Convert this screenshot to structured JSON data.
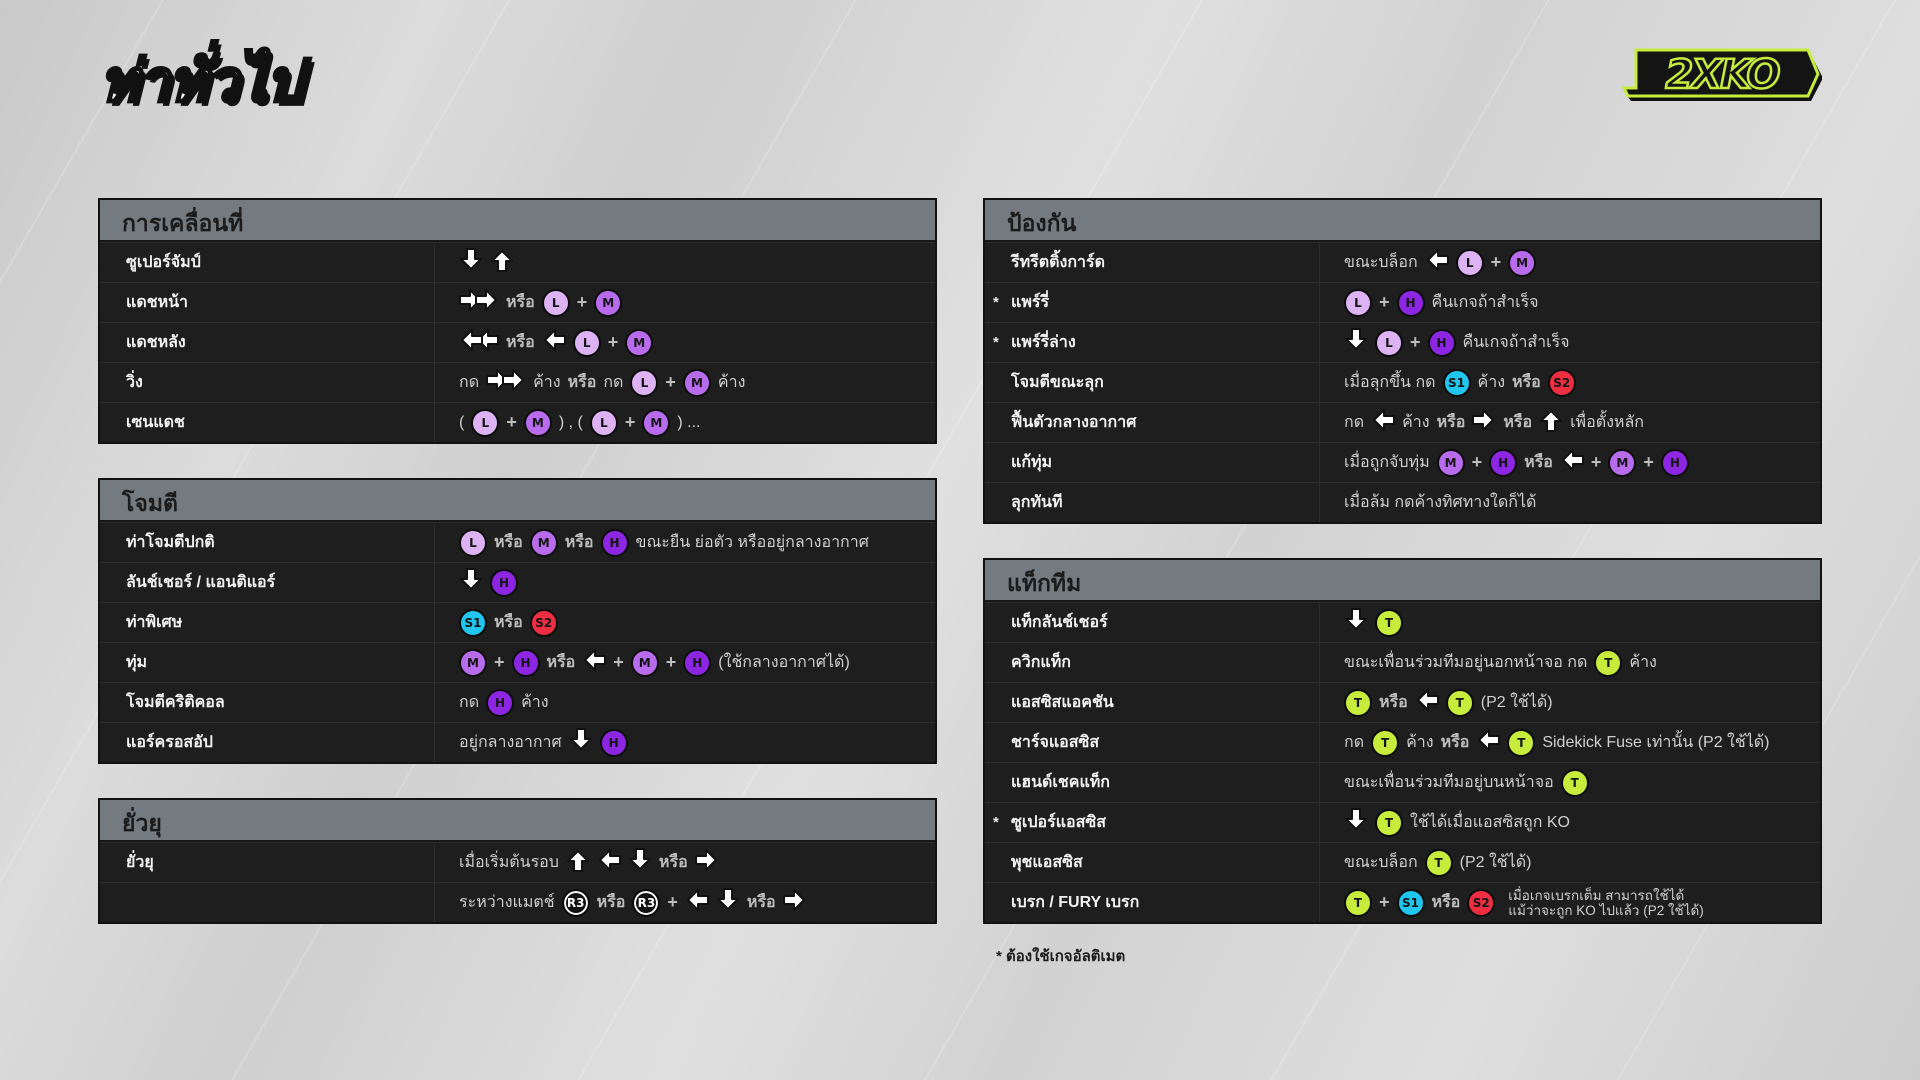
{
  "title": "ท่าทั่วไป",
  "logo_text": "2XKO",
  "colors": {
    "L": "#ddb3f6",
    "M": "#b96bee",
    "H": "#8c26e2",
    "S1": "#20c6ef",
    "S2": "#ef2e42",
    "T": "#c6ec3c",
    "R3": "#111111",
    "header": "#737b80",
    "row": "#1e1e1e"
  },
  "footnote": "* ต้องใช้เกจอัลติเมต",
  "panels": [
    {
      "title": "การเคลื่อนที่",
      "rows": [
        {
          "label": "ซูเปอร์จัมป์",
          "tokens": [
            "arr:down",
            "arr:up"
          ]
        },
        {
          "label": "แดชหน้า",
          "tokens": [
            "arr:right2",
            "or:หรือ",
            "btn:L",
            "+",
            "btn:M"
          ]
        },
        {
          "label": "แดชหลัง",
          "tokens": [
            "arr:left2",
            "or:หรือ",
            "arr:left",
            "btn:L",
            "+",
            "btn:M"
          ]
        },
        {
          "label": "วิ่ง",
          "tokens": [
            "กด",
            "arr:right2",
            "ค้าง",
            "or:หรือ",
            "กด",
            "btn:L",
            "+",
            "btn:M",
            "ค้าง"
          ]
        },
        {
          "label": "เซนแดช",
          "tokens": [
            "(",
            "btn:L",
            "+",
            "btn:M",
            ") , (",
            "btn:L",
            "+",
            "btn:M",
            ")  ..."
          ]
        }
      ]
    },
    {
      "title": "โจมตี",
      "rows": [
        {
          "label": "ท่าโจมตีปกติ",
          "tokens": [
            "btn:L",
            "or:หรือ",
            "btn:M",
            "or:หรือ",
            "btn:H",
            "ขณะยืน ย่อตัว หรืออยู่กลางอากาศ"
          ]
        },
        {
          "label": "ลันช์เชอร์ / แอนติแอร์",
          "tokens": [
            "arr:down",
            "btn:H"
          ]
        },
        {
          "label": "ท่าพิเศษ",
          "tokens": [
            "btn:S1",
            "or:หรือ",
            "btn:S2"
          ]
        },
        {
          "label": "ทุ่ม",
          "tokens": [
            "btn:M",
            "+",
            "btn:H",
            "or:หรือ",
            "arr:left",
            "+",
            "btn:M",
            "+",
            "btn:H",
            "(ใช้กลางอากาศได้)"
          ]
        },
        {
          "label": "โจมตีคริติคอล",
          "tokens": [
            "กด",
            "btn:H",
            "ค้าง"
          ]
        },
        {
          "label": "แอร์ครอสอัป",
          "tokens": [
            "อยู่กลางอากาศ",
            "arr:down",
            "btn:H"
          ]
        }
      ]
    },
    {
      "title": "ยั่วยุ",
      "rows": [
        {
          "label": "ยั่วยุ",
          "tokens": [
            "เมื่อเริ่มต้นรอบ",
            "arr:up",
            "arr:left",
            "arr:down",
            "or:หรือ",
            "arr:right"
          ]
        },
        {
          "label": "",
          "tokens": [
            "ระหว่างแมตช์",
            "btn:R3",
            "or:หรือ",
            "btn:R3",
            "+",
            "arr:left",
            "arr:down",
            "or:หรือ",
            "arr:right"
          ]
        }
      ]
    },
    {
      "title": "ป้องกัน",
      "rows": [
        {
          "label": "รีทรีตติ้งการ์ด",
          "tokens": [
            "ขณะบล็อก",
            "arr:left",
            "btn:L",
            "+",
            "btn:M"
          ]
        },
        {
          "label": "แพร์รี่",
          "star": "*",
          "tokens": [
            "btn:L",
            "+",
            "btn:H",
            "คืนเกจถ้าสำเร็จ"
          ]
        },
        {
          "label": "แพร์รี่ล่าง",
          "star": "*",
          "tokens": [
            "arr:down",
            "btn:L",
            "+",
            "btn:H",
            "คืนเกจถ้าสำเร็จ"
          ]
        },
        {
          "label": "โจมตีขณะลุก",
          "tokens": [
            "เมื่อลุกขึ้น กด",
            "btn:S1",
            "ค้าง",
            "or:หรือ",
            "btn:S2"
          ]
        },
        {
          "label": "ฟื้นตัวกลางอากาศ",
          "tokens": [
            "กด",
            "arr:left",
            "ค้าง",
            "or:หรือ",
            "arr:right",
            "or:หรือ",
            "arr:up",
            "เพื่อตั้งหลัก"
          ]
        },
        {
          "label": "แก้ทุ่ม",
          "tokens": [
            "เมื่อถูกจับทุ่ม",
            "btn:M",
            "+",
            "btn:H",
            "or:หรือ",
            "arr:left",
            "+",
            "btn:M",
            "+",
            "btn:H"
          ]
        },
        {
          "label": "ลุกทันที",
          "tokens": [
            "เมื่อล้ม กดค้างทิศทางใดก็ได้"
          ]
        }
      ]
    },
    {
      "title": "แท็กทีม",
      "rows": [
        {
          "label": "แท็กลันช์เชอร์",
          "tokens": [
            "arr:down",
            "btn:T"
          ]
        },
        {
          "label": "ควิกแท็ก",
          "tokens": [
            "ขณะเพื่อนร่วมทีมอยู่นอกหน้าจอ กด",
            "btn:T",
            "ค้าง"
          ]
        },
        {
          "label": "แอสซิสแอคชัน",
          "tokens": [
            "btn:T",
            "or:หรือ",
            "arr:left",
            "btn:T",
            "(P2 ใช้ได้)"
          ]
        },
        {
          "label": "ชาร์จแอสซิส",
          "tokens": [
            "กด",
            "btn:T",
            "ค้าง",
            "or:หรือ",
            "arr:left",
            "btn:T",
            "Sidekick Fuse เท่านั้น (P2 ใช้ได้)"
          ]
        },
        {
          "label": "แฮนด์เชคแท็ก",
          "tokens": [
            "ขณะเพื่อนร่วมทีมอยู่บนหน้าจอ",
            "btn:T"
          ]
        },
        {
          "label": "ซูเปอร์แอสซิส",
          "star": "*",
          "tokens": [
            "arr:down",
            "btn:T",
            "ใช้ได้เมื่อแอสซิสถูก KO"
          ]
        },
        {
          "label": "พุชแอสซิส",
          "tokens": [
            "ขณะบล็อก",
            "btn:T",
            "(P2 ใช้ได้)"
          ]
        },
        {
          "label": "เบรก / FURY เบรก",
          "tokens": [
            "btn:T",
            "+",
            "btn:S1",
            "or:หรือ",
            "btn:S2",
            "sm:เมื่อเกจเบรกเต็ม สามารถใช้ได้\nแม้ว่าจะถูก KO ไปแล้ว (P2 ใช้ได้)"
          ]
        }
      ]
    }
  ]
}
